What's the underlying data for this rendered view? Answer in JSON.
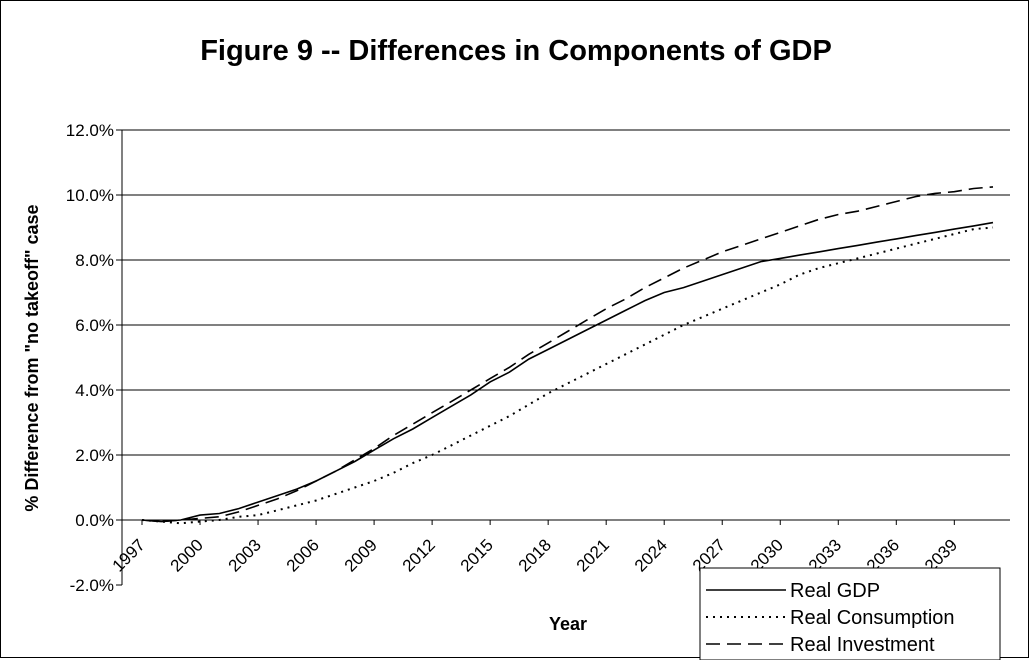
{
  "chart_data": {
    "type": "line",
    "title": "Figure 9 -- Differences in Components of GDP",
    "xlabel": "Year",
    "ylabel": "% Difference from \"no takeoff\" case",
    "ylim": [
      -0.02,
      0.12
    ],
    "yticks": [
      "-2.0%",
      "0.0%",
      "2.0%",
      "4.0%",
      "6.0%",
      "8.0%",
      "10.0%",
      "12.0%"
    ],
    "xticks": [
      "1997",
      "2000",
      "2003",
      "2006",
      "2009",
      "2012",
      "2015",
      "2018",
      "2021",
      "2024",
      "2027",
      "2030",
      "2033",
      "2036",
      "2039"
    ],
    "x": [
      1997,
      1998,
      1999,
      2000,
      2001,
      2002,
      2003,
      2004,
      2005,
      2006,
      2007,
      2008,
      2009,
      2010,
      2011,
      2012,
      2013,
      2014,
      2015,
      2016,
      2017,
      2018,
      2019,
      2020,
      2021,
      2022,
      2023,
      2024,
      2025,
      2026,
      2027,
      2028,
      2029,
      2030,
      2031,
      2032,
      2033,
      2034,
      2035,
      2036,
      2037,
      2038,
      2039,
      2040,
      2041
    ],
    "grid": "horizontal",
    "legend_position": "bottom-right",
    "series": [
      {
        "name": "Real GDP",
        "style": "solid",
        "values": [
          0.0,
          -0.0005,
          0.0,
          0.0015,
          0.002,
          0.0035,
          0.0055,
          0.0075,
          0.0095,
          0.012,
          0.015,
          0.018,
          0.0215,
          0.025,
          0.028,
          0.0315,
          0.035,
          0.0385,
          0.0425,
          0.0455,
          0.0495,
          0.0525,
          0.0555,
          0.0585,
          0.0615,
          0.0645,
          0.0675,
          0.07,
          0.0715,
          0.0735,
          0.0755,
          0.0775,
          0.0795,
          0.0805,
          0.0815,
          0.0825,
          0.0835,
          0.0845,
          0.0855,
          0.0865,
          0.0875,
          0.0885,
          0.0895,
          0.0905,
          0.0915
        ]
      },
      {
        "name": "Real Consumption",
        "style": "dotted",
        "values": [
          0.0,
          -0.0005,
          -0.001,
          -0.0005,
          0.0,
          0.001,
          0.0015,
          0.003,
          0.0045,
          0.006,
          0.008,
          0.01,
          0.012,
          0.0145,
          0.0175,
          0.02,
          0.023,
          0.026,
          0.029,
          0.032,
          0.0355,
          0.039,
          0.042,
          0.045,
          0.048,
          0.051,
          0.054,
          0.057,
          0.06,
          0.0625,
          0.065,
          0.0675,
          0.07,
          0.0725,
          0.0755,
          0.0775,
          0.079,
          0.0805,
          0.082,
          0.0835,
          0.085,
          0.0865,
          0.088,
          0.0895,
          0.09
        ]
      },
      {
        "name": "Real Investment",
        "style": "dashed",
        "values": [
          0.0,
          -0.0005,
          0.0,
          0.0005,
          0.001,
          0.0025,
          0.0045,
          0.0065,
          0.009,
          0.012,
          0.015,
          0.0185,
          0.022,
          0.026,
          0.0295,
          0.033,
          0.0365,
          0.04,
          0.0435,
          0.047,
          0.051,
          0.0545,
          0.058,
          0.0615,
          0.065,
          0.068,
          0.0715,
          0.0745,
          0.0775,
          0.08,
          0.0825,
          0.0845,
          0.0865,
          0.0885,
          0.0905,
          0.0925,
          0.094,
          0.095,
          0.0965,
          0.098,
          0.0995,
          0.1005,
          0.101,
          0.102,
          0.1025
        ]
      }
    ]
  }
}
